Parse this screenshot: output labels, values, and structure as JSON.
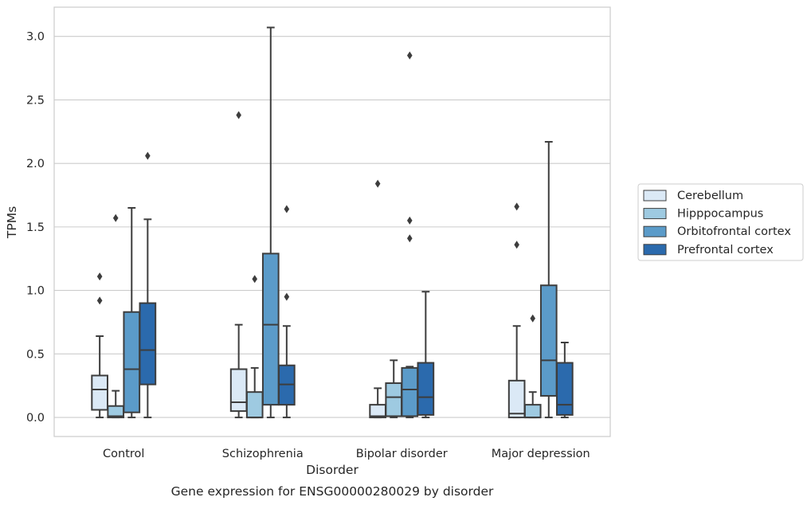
{
  "chart_data": {
    "type": "box",
    "caption": "Gene expression for ENSG00000280029 by disorder",
    "xlabel": "Disorder",
    "ylabel": "TPMs",
    "ylim": [
      -0.15,
      3.23
    ],
    "yticks": [
      "0.0",
      "0.5",
      "1.0",
      "1.5",
      "2.0",
      "2.5",
      "3.0"
    ],
    "ytick_values": [
      0.0,
      0.5,
      1.0,
      1.5,
      2.0,
      2.5,
      3.0
    ],
    "grid": "horizontal",
    "legend_position": "right",
    "categories": [
      "Control",
      "Schizophrenia",
      "Bipolar disorder",
      "Major depression"
    ],
    "series": [
      {
        "name": "Cerebellum",
        "color": "#dbe9f6",
        "boxes": [
          {
            "q1": 0.06,
            "median": 0.22,
            "q3": 0.33,
            "whisker_low": 0.0,
            "whisker_high": 0.64,
            "outliers": [
              0.92,
              1.11
            ]
          },
          {
            "q1": 0.05,
            "median": 0.12,
            "q3": 0.38,
            "whisker_low": 0.0,
            "whisker_high": 0.73,
            "outliers": [
              2.38
            ]
          },
          {
            "q1": 0.0,
            "median": 0.01,
            "q3": 0.1,
            "whisker_low": 0.0,
            "whisker_high": 0.23,
            "outliers": [
              1.84
            ]
          },
          {
            "q1": 0.0,
            "median": 0.03,
            "q3": 0.29,
            "whisker_low": 0.0,
            "whisker_high": 0.72,
            "outliers": [
              1.36,
              1.66
            ]
          }
        ]
      },
      {
        "name": "Hipppocampus",
        "color": "#9ecae1",
        "boxes": [
          {
            "q1": 0.0,
            "median": 0.01,
            "q3": 0.09,
            "whisker_low": 0.0,
            "whisker_high": 0.21,
            "outliers": [
              1.57
            ]
          },
          {
            "q1": 0.0,
            "median": 0.0,
            "q3": 0.2,
            "whisker_low": 0.0,
            "whisker_high": 0.39,
            "outliers": [
              1.09
            ]
          },
          {
            "q1": 0.01,
            "median": 0.16,
            "q3": 0.27,
            "whisker_low": 0.0,
            "whisker_high": 0.45,
            "outliers": []
          },
          {
            "q1": 0.0,
            "median": 0.0,
            "q3": 0.1,
            "whisker_low": 0.0,
            "whisker_high": 0.2,
            "outliers": [
              0.78
            ]
          }
        ]
      },
      {
        "name": "Orbitofrontal cortex",
        "color": "#5b9bc9",
        "boxes": [
          {
            "q1": 0.04,
            "median": 0.38,
            "q3": 0.83,
            "whisker_low": 0.0,
            "whisker_high": 1.65,
            "outliers": []
          },
          {
            "q1": 0.1,
            "median": 0.73,
            "q3": 1.29,
            "whisker_low": 0.0,
            "whisker_high": 3.07,
            "outliers": []
          },
          {
            "q1": 0.01,
            "median": 0.22,
            "q3": 0.39,
            "whisker_low": 0.0,
            "whisker_high": 0.4,
            "outliers": [
              1.41,
              1.55,
              2.85
            ]
          },
          {
            "q1": 0.17,
            "median": 0.45,
            "q3": 1.04,
            "whisker_low": 0.0,
            "whisker_high": 2.17,
            "outliers": []
          }
        ]
      },
      {
        "name": "Prefrontal cortex",
        "color": "#2b6aad",
        "boxes": [
          {
            "q1": 0.26,
            "median": 0.53,
            "q3": 0.9,
            "whisker_low": 0.0,
            "whisker_high": 1.56,
            "outliers": [
              2.06
            ]
          },
          {
            "q1": 0.1,
            "median": 0.26,
            "q3": 0.41,
            "whisker_low": 0.0,
            "whisker_high": 0.72,
            "outliers": [
              0.95,
              1.64
            ]
          },
          {
            "q1": 0.02,
            "median": 0.16,
            "q3": 0.43,
            "whisker_low": 0.0,
            "whisker_high": 0.99,
            "outliers": []
          },
          {
            "q1": 0.02,
            "median": 0.1,
            "q3": 0.43,
            "whisker_low": 0.0,
            "whisker_high": 0.59,
            "outliers": []
          }
        ]
      }
    ]
  }
}
